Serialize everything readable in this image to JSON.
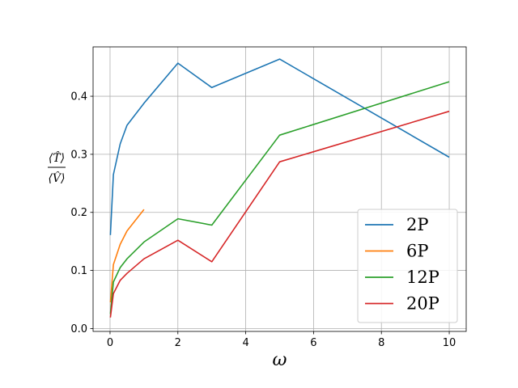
{
  "chart_data": {
    "type": "line",
    "xlabel": "ω",
    "ylabel_num": "⟨T̂⟩",
    "ylabel_den": "⟨V̂⟩",
    "xlim": [
      -0.5,
      10.5
    ],
    "ylim": [
      -0.005,
      0.485
    ],
    "xticks": [
      0,
      2,
      4,
      6,
      8,
      10
    ],
    "yticks": [
      0.0,
      0.1,
      0.2,
      0.3,
      0.4
    ],
    "ytick_labels": [
      "0.0",
      "0.1",
      "0.2",
      "0.3",
      "0.4"
    ],
    "grid": true,
    "legend_position": "lower right",
    "series": [
      {
        "name": "2P",
        "color": "#1f77b4",
        "x": [
          0.01,
          0.1,
          0.3,
          0.5,
          1,
          2,
          3,
          5,
          10
        ],
        "y": [
          0.161,
          0.265,
          0.318,
          0.35,
          0.388,
          0.457,
          0.415,
          0.464,
          0.295
        ]
      },
      {
        "name": "6P",
        "color": "#ff7f0e",
        "x": [
          0.01,
          0.1,
          0.3,
          0.5,
          1
        ],
        "y": [
          0.045,
          0.11,
          0.145,
          0.168,
          0.205
        ]
      },
      {
        "name": "12P",
        "color": "#2ca02c",
        "x": [
          0.01,
          0.1,
          0.3,
          0.5,
          1,
          2,
          3,
          5,
          10
        ],
        "y": [
          0.025,
          0.08,
          0.105,
          0.12,
          0.149,
          0.189,
          0.178,
          0.333,
          0.425
        ]
      },
      {
        "name": "20P",
        "color": "#d62728",
        "x": [
          0.01,
          0.1,
          0.3,
          0.5,
          1,
          2,
          3,
          5,
          10
        ],
        "y": [
          0.019,
          0.06,
          0.083,
          0.095,
          0.12,
          0.152,
          0.115,
          0.287,
          0.374
        ]
      }
    ]
  }
}
